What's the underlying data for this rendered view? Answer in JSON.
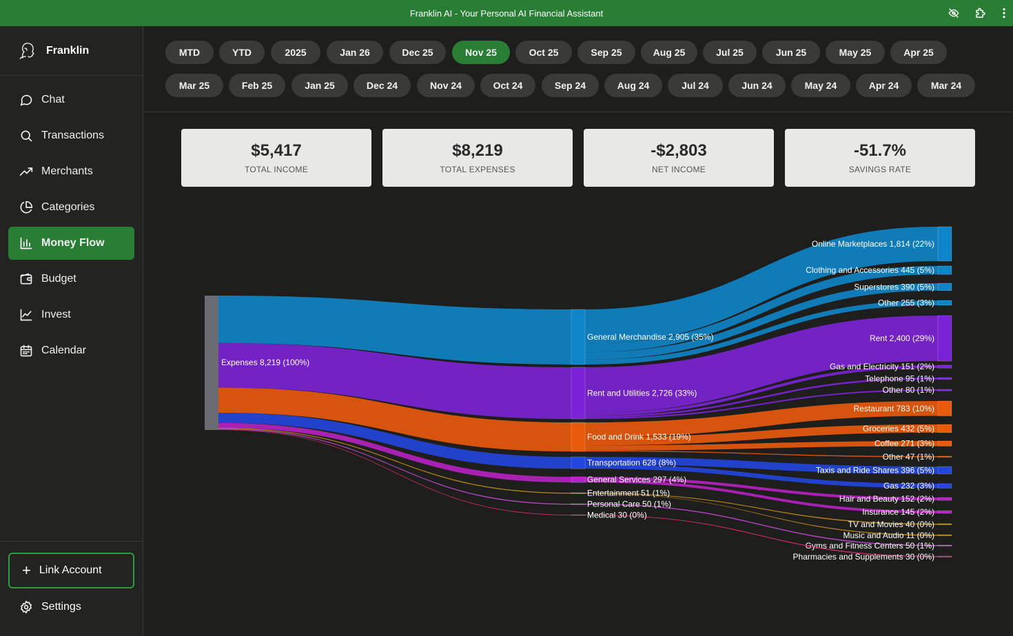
{
  "app": {
    "title": "Franklin AI - Your Personal AI Financial Assistant",
    "brand": "Franklin"
  },
  "titlebar_icons": [
    "eye-off-icon",
    "puzzle-icon",
    "more-vertical-icon"
  ],
  "sidebar": {
    "items": [
      {
        "label": "Chat",
        "icon": "chat-icon",
        "active": false
      },
      {
        "label": "Transactions",
        "icon": "search-icon",
        "active": false
      },
      {
        "label": "Merchants",
        "icon": "trending-up-icon",
        "active": false
      },
      {
        "label": "Categories",
        "icon": "pie-chart-icon",
        "active": false
      },
      {
        "label": "Money Flow",
        "icon": "bar-chart-icon",
        "active": true
      },
      {
        "label": "Budget",
        "icon": "wallet-icon",
        "active": false
      },
      {
        "label": "Invest",
        "icon": "line-chart-icon",
        "active": false
      },
      {
        "label": "Calendar",
        "icon": "calendar-icon",
        "active": false
      }
    ],
    "link_account": "Link Account",
    "settings": "Settings"
  },
  "periods": {
    "row1": [
      "MTD",
      "YTD",
      "2025",
      "Jan 26",
      "Dec 25",
      "Nov 25",
      "Oct 25",
      "Sep 25",
      "Aug 25",
      "Jul 25",
      "Jun 25",
      "May 25",
      "Apr 25"
    ],
    "row2": [
      "Mar 25",
      "Feb 25",
      "Jan 25",
      "Dec 24",
      "Nov 24",
      "Oct 24",
      "Sep 24",
      "Aug 24",
      "Jul 24",
      "Jun 24",
      "May 24",
      "Apr 24",
      "Mar 24"
    ],
    "active": "Nov 25"
  },
  "stats": [
    {
      "value": "$5,417",
      "label": "TOTAL INCOME"
    },
    {
      "value": "$8,219",
      "label": "TOTAL EXPENSES"
    },
    {
      "value": "-$2,803",
      "label": "NET INCOME"
    },
    {
      "value": "-51.7%",
      "label": "SAVINGS RATE"
    }
  ],
  "chart_data": {
    "type": "sankey",
    "root": {
      "label": "Expenses 8,219 (100%)",
      "value": 8219
    },
    "categories": [
      {
        "label": "General Merchandise 2,905 (35%)",
        "value": 2905,
        "color": "#0f85c9",
        "children": [
          {
            "label": "Online Marketplaces 1,814 (22%)",
            "value": 1814
          },
          {
            "label": "Clothing and Accessories 445 (5%)",
            "value": 445
          },
          {
            "label": "Superstores 390 (5%)",
            "value": 390
          },
          {
            "label": "Other 255 (3%)",
            "value": 255
          }
        ]
      },
      {
        "label": "Rent and Utilities 2,726 (33%)",
        "value": 2726,
        "color": "#7c22d6",
        "children": [
          {
            "label": "Rent 2,400 (29%)",
            "value": 2400
          },
          {
            "label": "Gas and Electricity 151 (2%)",
            "value": 151
          },
          {
            "label": "Telephone 95 (1%)",
            "value": 95
          },
          {
            "label": "Other 80 (1%)",
            "value": 80
          }
        ]
      },
      {
        "label": "Food and Drink 1,533 (19%)",
        "value": 1533,
        "color": "#ea5a0c",
        "children": [
          {
            "label": "Restaurant 783 (10%)",
            "value": 783
          },
          {
            "label": "Groceries 432 (5%)",
            "value": 432
          },
          {
            "label": "Coffee 271 (3%)",
            "value": 271
          },
          {
            "label": "Other 47 (1%)",
            "value": 47
          }
        ]
      },
      {
        "label": "Transportation 628 (8%)",
        "value": 628,
        "color": "#2346e0",
        "children": [
          {
            "label": "Taxis and Ride Shares 396 (5%)",
            "value": 396
          },
          {
            "label": "Gas 232 (3%)",
            "value": 232
          }
        ]
      },
      {
        "label": "General Services 297 (4%)",
        "value": 297,
        "color": "#b821c4",
        "children": [
          {
            "label": "Hair and Beauty 152 (2%)",
            "value": 152
          },
          {
            "label": "Insurance 145 (2%)",
            "value": 145
          }
        ]
      },
      {
        "label": "Entertainment 51 (1%)",
        "value": 51,
        "color": "#c28a1e",
        "children": [
          {
            "label": "TV and Movies 40 (0%)",
            "value": 40
          },
          {
            "label": "Music and Audio 11 (0%)",
            "value": 11
          }
        ]
      },
      {
        "label": "Personal Care 50 (1%)",
        "value": 50,
        "color": "#c44ad6",
        "children": [
          {
            "label": "Gyms and Fitness Centers 50 (1%)",
            "value": 50
          }
        ]
      },
      {
        "label": "Medical 30 (0%)",
        "value": 30,
        "color": "#d62a6e",
        "children": [
          {
            "label": "Pharmacies and Supplements 30 (0%)",
            "value": 30
          }
        ]
      }
    ]
  }
}
